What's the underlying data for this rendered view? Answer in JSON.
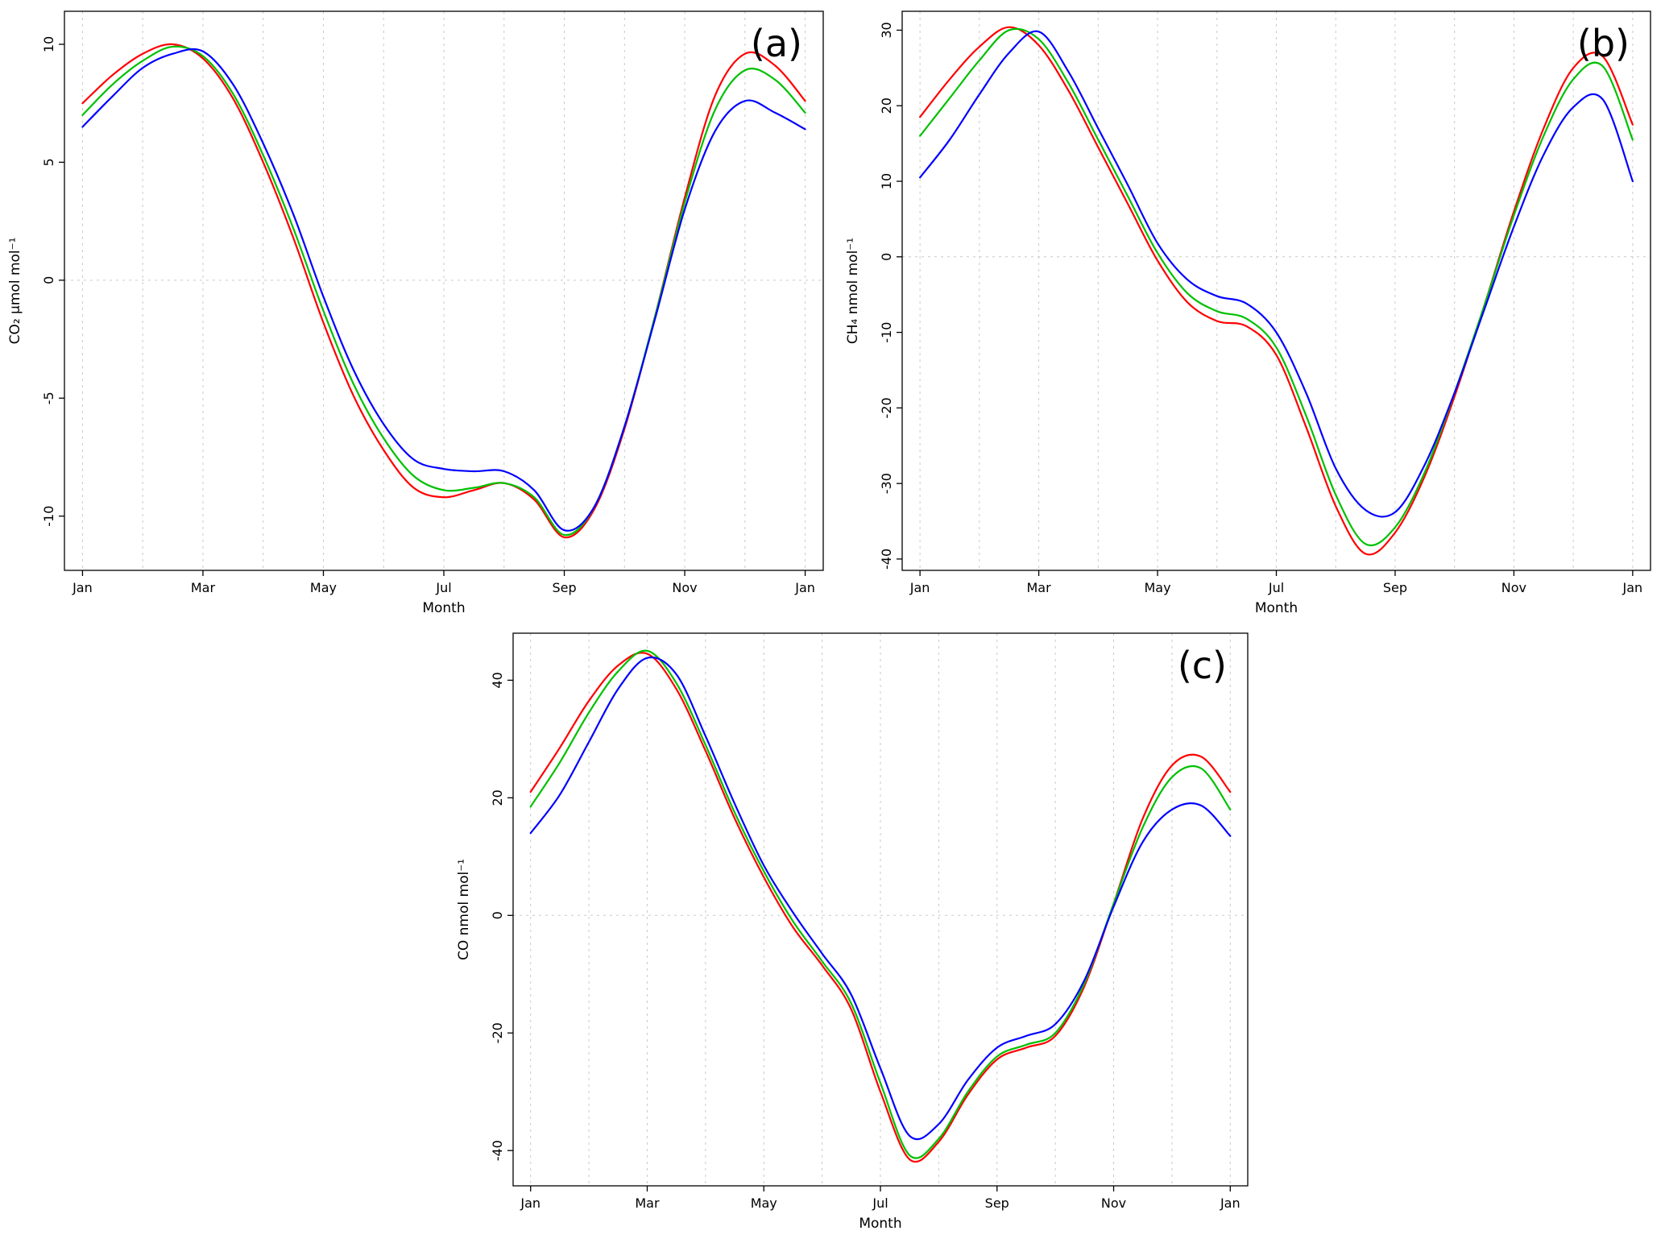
{
  "figure": {
    "background": "#ffffff",
    "description_note": "Three-panel seasonal cycle line charts"
  },
  "chart_data": [
    {
      "id": "a",
      "type": "line",
      "panel_label": "(a)",
      "xlabel": "Month",
      "ylabel": "CO₂ μmol mol⁻¹",
      "x": [
        0,
        0.5,
        1,
        1.5,
        2,
        2.5,
        3,
        3.5,
        4,
        4.5,
        5,
        5.5,
        6,
        6.5,
        7,
        7.5,
        8,
        8.5,
        9,
        9.5,
        10,
        10.5,
        11,
        11.5,
        12
      ],
      "xlim": [
        -0.3,
        12.3
      ],
      "ylim": [
        -12.3,
        11.4
      ],
      "xticks": {
        "positions": [
          0,
          2,
          4,
          6,
          8,
          10,
          12
        ],
        "labels": [
          "Jan",
          "Mar",
          "May",
          "Jul",
          "Sep",
          "Nov",
          "Jan"
        ]
      },
      "yticks": [
        -10,
        -5,
        0,
        5,
        10
      ],
      "grid_vertical_every_month": true,
      "zero_line": true,
      "legend": "none",
      "series": [
        {
          "name": "red",
          "color": "#ff0000",
          "values": [
            7.5,
            8.7,
            9.6,
            10.0,
            9.4,
            7.7,
            5.0,
            1.8,
            -1.8,
            -4.9,
            -7.2,
            -8.8,
            -9.2,
            -8.9,
            -8.6,
            -9.3,
            -10.9,
            -9.7,
            -6.3,
            -1.6,
            3.5,
            7.8,
            9.6,
            9.1,
            7.6
          ]
        },
        {
          "name": "green",
          "color": "#00c000",
          "values": [
            7.0,
            8.3,
            9.3,
            9.9,
            9.5,
            7.9,
            5.3,
            2.2,
            -1.3,
            -4.4,
            -6.7,
            -8.3,
            -8.9,
            -8.8,
            -8.6,
            -9.2,
            -10.8,
            -9.6,
            -6.2,
            -1.6,
            3.3,
            7.2,
            8.9,
            8.5,
            7.1
          ]
        },
        {
          "name": "blue",
          "color": "#0000ff",
          "values": [
            6.5,
            7.8,
            9.0,
            9.6,
            9.7,
            8.3,
            5.8,
            2.8,
            -0.7,
            -3.8,
            -6.1,
            -7.6,
            -8.0,
            -8.1,
            -8.1,
            -8.9,
            -10.6,
            -9.6,
            -6.2,
            -1.7,
            3.0,
            6.3,
            7.6,
            7.1,
            6.4
          ]
        }
      ]
    },
    {
      "id": "b",
      "type": "line",
      "panel_label": "(b)",
      "xlabel": "Month",
      "ylabel": "CH₄ nmol mol⁻¹",
      "x": [
        0,
        0.5,
        1,
        1.5,
        2,
        2.5,
        3,
        3.5,
        4,
        4.5,
        5,
        5.5,
        6,
        6.5,
        7,
        7.5,
        8,
        8.5,
        9,
        9.5,
        10,
        10.5,
        11,
        11.5,
        12
      ],
      "xlim": [
        -0.3,
        12.3
      ],
      "ylim": [
        -41.5,
        32.5
      ],
      "xticks": {
        "positions": [
          0,
          2,
          4,
          6,
          8,
          10,
          12
        ],
        "labels": [
          "Jan",
          "Mar",
          "May",
          "Jul",
          "Sep",
          "Nov",
          "Jan"
        ]
      },
      "yticks": [
        -40,
        -30,
        -20,
        -10,
        0,
        10,
        20,
        30
      ],
      "grid_vertical_every_month": true,
      "zero_line": true,
      "legend": "none",
      "series": [
        {
          "name": "red",
          "color": "#ff0000",
          "values": [
            18.5,
            23.5,
            27.8,
            30.4,
            28.0,
            22.0,
            14.5,
            7.0,
            -0.5,
            -6.0,
            -8.5,
            -9.2,
            -13.0,
            -22.5,
            -33.0,
            -39.3,
            -36.5,
            -29.0,
            -18.5,
            -6.5,
            6.0,
            17.0,
            25.0,
            26.5,
            17.5
          ]
        },
        {
          "name": "green",
          "color": "#00c000",
          "values": [
            16.0,
            21.0,
            26.0,
            30.0,
            28.8,
            23.0,
            15.5,
            8.0,
            0.5,
            -4.8,
            -7.2,
            -8.2,
            -12.0,
            -21.0,
            -31.5,
            -38.0,
            -35.8,
            -28.5,
            -18.0,
            -6.5,
            5.5,
            16.0,
            23.5,
            25.2,
            15.5
          ]
        },
        {
          "name": "blue",
          "color": "#0000ff",
          "values": [
            10.5,
            15.5,
            21.5,
            27.0,
            29.8,
            24.5,
            17.0,
            9.5,
            1.8,
            -3.0,
            -5.2,
            -6.2,
            -10.0,
            -18.0,
            -28.0,
            -33.5,
            -33.8,
            -27.5,
            -18.0,
            -7.0,
            4.0,
            13.5,
            19.8,
            20.8,
            10.0
          ]
        }
      ]
    },
    {
      "id": "c",
      "type": "line",
      "panel_label": "(c)",
      "xlabel": "Month",
      "ylabel": "CO nmol mol⁻¹",
      "x": [
        0,
        0.5,
        1,
        1.5,
        2,
        2.5,
        3,
        3.5,
        4,
        4.5,
        5,
        5.5,
        6,
        6.5,
        7,
        7.5,
        8,
        8.5,
        9,
        9.5,
        10,
        10.5,
        11,
        11.5,
        12
      ],
      "xlim": [
        -0.3,
        12.3
      ],
      "ylim": [
        -46,
        48
      ],
      "xticks": {
        "positions": [
          0,
          2,
          4,
          6,
          8,
          10,
          12
        ],
        "labels": [
          "Jan",
          "Mar",
          "May",
          "Jul",
          "Sep",
          "Nov",
          "Jan"
        ]
      },
      "yticks": [
        -40,
        -20,
        0,
        20,
        40
      ],
      "grid_vertical_every_month": true,
      "zero_line": true,
      "legend": "none",
      "series": [
        {
          "name": "red",
          "color": "#ff0000",
          "values": [
            21.0,
            28.5,
            36.5,
            42.5,
            44.5,
            38.5,
            28.0,
            16.5,
            6.5,
            -2.0,
            -8.5,
            -16.0,
            -30.0,
            -41.5,
            -38.5,
            -30.5,
            -24.5,
            -22.5,
            -20.5,
            -12.0,
            2.0,
            16.5,
            25.5,
            27.0,
            21.0
          ]
        },
        {
          "name": "green",
          "color": "#00c000",
          "values": [
            18.5,
            26.0,
            34.5,
            41.5,
            45.0,
            39.5,
            29.0,
            17.5,
            7.5,
            -1.0,
            -7.8,
            -15.0,
            -28.5,
            -40.8,
            -38.0,
            -30.0,
            -24.0,
            -22.0,
            -20.0,
            -11.5,
            2.0,
            15.0,
            23.5,
            25.0,
            18.0
          ]
        },
        {
          "name": "blue",
          "color": "#0000ff",
          "values": [
            14.0,
            20.5,
            29.5,
            38.5,
            43.8,
            41.0,
            30.5,
            19.0,
            8.5,
            0.5,
            -6.5,
            -13.5,
            -26.0,
            -37.5,
            -35.5,
            -28.0,
            -22.5,
            -20.5,
            -18.5,
            -11.0,
            1.5,
            12.5,
            18.0,
            18.7,
            13.5
          ]
        }
      ]
    }
  ]
}
